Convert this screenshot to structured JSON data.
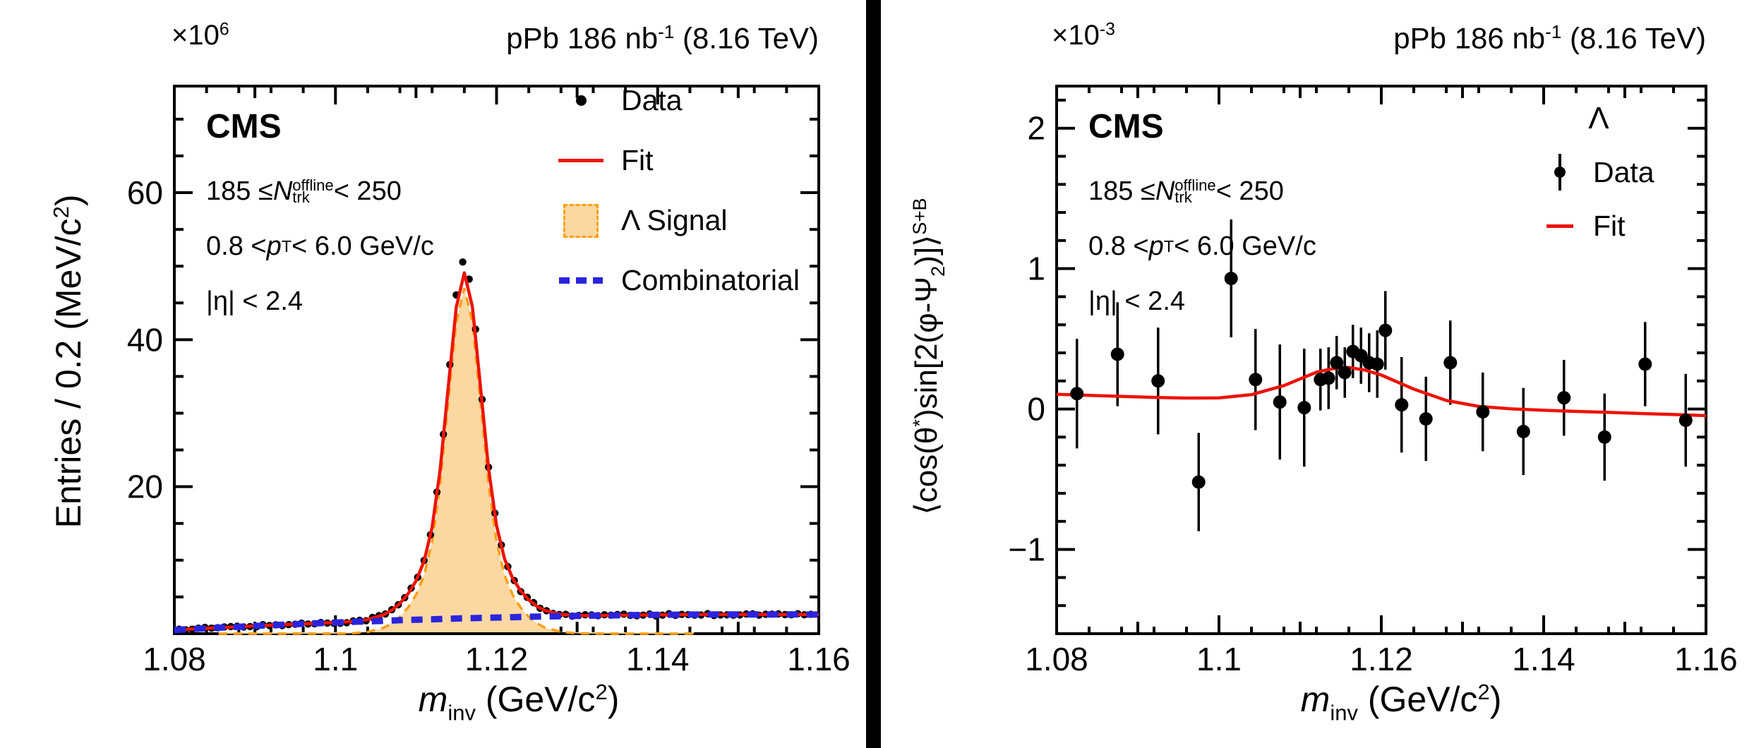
{
  "colors": {
    "fit_red": "#ec1409",
    "signal_fill": "#fbd8a2",
    "signal_line": "#ff9e14",
    "combinatorial_blue": "#2b24dd",
    "marker_black": "#000000",
    "frame_black": "#000000",
    "divider_black": "#000000"
  },
  "left_panel": {
    "exponent_label": "×10^{6}",
    "lumi_label": "pPb 186 nb^{-1} (8.16 TeV)",
    "cms_label": "CMS",
    "selection_lines": [
      "185 ≤ *N*_{trk}^{offline} < 250",
      "0.8 < *p*_{T} < 6.0 GeV/c",
      "|η| < 2.4"
    ],
    "legend": [
      {
        "label": "Data",
        "marker": "dot"
      },
      {
        "label": "Fit",
        "marker": "line"
      },
      {
        "label": "Λ Signal",
        "marker": "box"
      },
      {
        "label": "Combinatorial",
        "marker": "dashes"
      }
    ],
    "xlabel": "*m*_{inv} (GeV/c^{2})",
    "ylabel": "Entries / 0.2 (MeV/c^{2})"
  },
  "right_panel": {
    "exponent_label": "×10^{-3}",
    "lumi_label": "pPb 186 nb^{-1} (8.16 TeV)",
    "cms_label": "CMS",
    "selection_lines": [
      "185 ≤ *N*_{trk}^{offline} < 250",
      "0.8 < *p*_{T} < 6.0 GeV/c",
      "|η| < 2.4"
    ],
    "legend_title": "Λ",
    "legend": [
      {
        "label": "Data",
        "marker": "dotbar"
      },
      {
        "label": "Fit",
        "marker": "line-short"
      }
    ],
    "xlabel": "*m*_{inv} (GeV/c^{2})",
    "ylabel": "⟨cos(θ^{*})sin[2(φ-Ψ_{2})]⟩^{S+B}"
  },
  "chart_data": [
    {
      "type": "line",
      "title": "Lambda invariant mass distribution with fit",
      "xlabel": "m_inv (GeV/c^2)",
      "ylabel": "Entries / 0.2 (MeV/c^2)",
      "y_scale_exponent": 6,
      "xlim": [
        1.08,
        1.16
      ],
      "ylim": [
        0,
        74.5
      ],
      "x_ticks": {
        "major": [
          {
            "v": 1.08,
            "label": "1.08"
          },
          {
            "v": 1.1,
            "label": "1.1"
          },
          {
            "v": 1.12,
            "label": "1.12"
          },
          {
            "v": 1.14,
            "label": "1.14"
          },
          {
            "v": 1.16,
            "label": "1.16"
          }
        ],
        "medium_step": 0.01,
        "minor_step": 0.004
      },
      "y_ticks": {
        "major": [
          {
            "v": 20,
            "label": "20"
          },
          {
            "v": 40,
            "label": "40"
          },
          {
            "v": 60,
            "label": "60"
          }
        ],
        "minor_step": 5
      },
      "series": {
        "background": {
          "name": "Combinatorial",
          "x_start": 1.08,
          "x_step": 0.002,
          "y": [
            0.5,
            0.62,
            0.73,
            0.84,
            0.94,
            1.05,
            1.15,
            1.24,
            1.34,
            1.43,
            1.51,
            1.6,
            1.68,
            1.75,
            1.83,
            1.9,
            1.96,
            2.03,
            2.09,
            2.15,
            2.2,
            2.25,
            2.3,
            2.34,
            2.38,
            2.42,
            2.46,
            2.49,
            2.52,
            2.54,
            2.56,
            2.58,
            2.6,
            2.61,
            2.62,
            2.62,
            2.62,
            2.62,
            2.62,
            2.61,
            2.6
          ]
        },
        "signal": {
          "name": "Λ Signal",
          "peak_mass": 1.116,
          "draw_range": [
            1.0855,
            1.1445
          ],
          "x": [
            1.08,
            1.086,
            1.092,
            1.096,
            1.1,
            1.102,
            1.104,
            1.106,
            1.107,
            1.108,
            1.109,
            1.11,
            1.111,
            1.112,
            1.113,
            1.114,
            1.115,
            1.116,
            1.117,
            1.118,
            1.119,
            1.12,
            1.121,
            1.122,
            1.123,
            1.124,
            1.125,
            1.126,
            1.128,
            1.13,
            1.132,
            1.136,
            1.14,
            1.146,
            1.152,
            1.16
          ],
          "y": [
            0,
            0,
            0,
            0.01,
            0.01,
            0.05,
            0.24,
            0.82,
            1.41,
            2.29,
            3.54,
            5.28,
            7.93,
            12.5,
            20.33,
            31.46,
            42.34,
            47.0,
            42.34,
            31.46,
            20.33,
            12.5,
            7.93,
            5.28,
            3.54,
            2.29,
            1.41,
            0.82,
            0.24,
            0.05,
            0.01,
            0,
            0,
            0,
            0,
            0
          ]
        },
        "fit": {
          "name": "Fit",
          "compose": "signal+background"
        },
        "data": {
          "name": "Data",
          "dot_step": 0.0008,
          "apex_extra": {
            "center": 1.1159,
            "amp": 2.3,
            "sigma": 0.0013
          },
          "jitter_amp": 0.3
        }
      }
    },
    {
      "type": "scatter",
      "title": "cos(theta*)sin[2(phi-Psi2)] S+B vs invariant mass",
      "xlabel": "m_inv (GeV/c^2)",
      "ylabel": "<cos(theta*)sin[2(phi-Psi2)]>^(S+B)",
      "y_scale_exponent": -3,
      "xlim": [
        1.08,
        1.16
      ],
      "ylim": [
        -1.6,
        2.3
      ],
      "x_ticks": {
        "major": [
          {
            "v": 1.08,
            "label": "1.08"
          },
          {
            "v": 1.1,
            "label": "1.1"
          },
          {
            "v": 1.12,
            "label": "1.12"
          },
          {
            "v": 1.14,
            "label": "1.14"
          },
          {
            "v": 1.16,
            "label": "1.16"
          }
        ],
        "medium_step": 0.01,
        "minor_step": 0.004
      },
      "y_ticks": {
        "major": [
          {
            "v": -1,
            "label": "−1"
          },
          {
            "v": 0,
            "label": "0"
          },
          {
            "v": 1,
            "label": "1"
          },
          {
            "v": 2,
            "label": "2"
          }
        ],
        "minor_step": 0.2
      },
      "points": [
        [
          1.0825,
          0.11,
          0.39
        ],
        [
          1.0875,
          0.39,
          0.37
        ],
        [
          1.0925,
          0.2,
          0.38
        ],
        [
          1.0975,
          -0.52,
          0.35
        ],
        [
          1.1015,
          0.93,
          0.42
        ],
        [
          1.1045,
          0.21,
          0.36
        ],
        [
          1.1075,
          0.05,
          0.41
        ],
        [
          1.1105,
          0.01,
          0.42
        ],
        [
          1.1125,
          0.21,
          0.22
        ],
        [
          1.1135,
          0.22,
          0.22
        ],
        [
          1.1145,
          0.33,
          0.19
        ],
        [
          1.1155,
          0.26,
          0.18
        ],
        [
          1.1165,
          0.41,
          0.19
        ],
        [
          1.1175,
          0.38,
          0.2
        ],
        [
          1.1185,
          0.33,
          0.21
        ],
        [
          1.1195,
          0.32,
          0.24
        ],
        [
          1.1205,
          0.56,
          0.28
        ],
        [
          1.1225,
          0.03,
          0.34
        ],
        [
          1.1255,
          -0.07,
          0.3
        ],
        [
          1.1285,
          0.33,
          0.3
        ],
        [
          1.1325,
          -0.02,
          0.28
        ],
        [
          1.1375,
          -0.16,
          0.31
        ],
        [
          1.1425,
          0.08,
          0.27
        ],
        [
          1.1475,
          -0.2,
          0.31
        ],
        [
          1.1525,
          0.32,
          0.3
        ],
        [
          1.1575,
          -0.08,
          0.33
        ]
      ],
      "fit": {
        "x": [
          1.08,
          1.084,
          1.088,
          1.092,
          1.096,
          1.1,
          1.104,
          1.108,
          1.112,
          1.114,
          1.116,
          1.118,
          1.12,
          1.124,
          1.128,
          1.132,
          1.136,
          1.14,
          1.144,
          1.148,
          1.152,
          1.156,
          1.16
        ],
        "y": [
          0.105,
          0.097,
          0.09,
          0.083,
          0.078,
          0.079,
          0.102,
          0.167,
          0.262,
          0.287,
          0.296,
          0.277,
          0.242,
          0.142,
          0.061,
          0.019,
          0.001,
          -0.009,
          -0.017,
          -0.024,
          -0.032,
          -0.039,
          -0.047
        ]
      }
    }
  ]
}
